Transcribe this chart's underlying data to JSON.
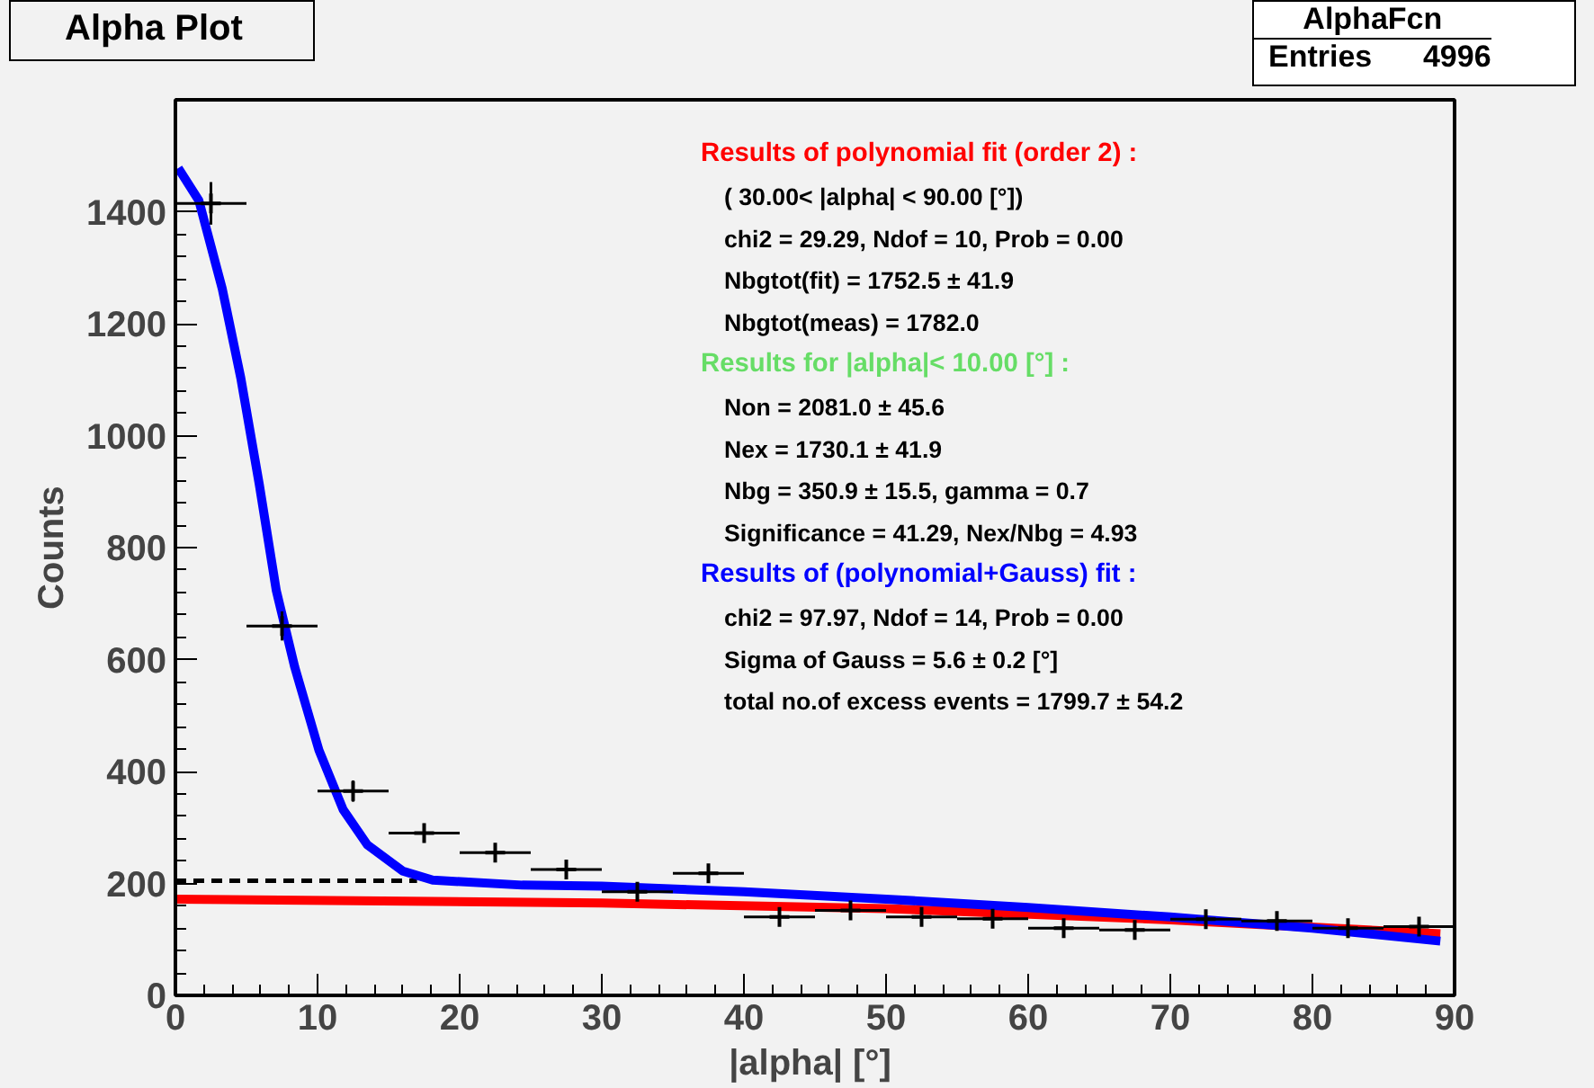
{
  "chart_data": {
    "type": "scatter",
    "title": "Alpha Plot",
    "xlabel": "|alpha|  [°]",
    "ylabel": "Counts",
    "xlim": [
      0,
      90
    ],
    "ylim": [
      0,
      1600
    ],
    "xticks": [
      0,
      10,
      20,
      30,
      40,
      50,
      60,
      70,
      80,
      90
    ],
    "yticks": [
      0,
      200,
      400,
      600,
      800,
      1000,
      1200,
      1400
    ],
    "grid": false,
    "x": [
      2.5,
      7.5,
      12.5,
      17.5,
      22.5,
      27.5,
      32.5,
      37.5,
      42.5,
      47.5,
      52.5,
      57.5,
      62.5,
      67.5,
      72.5,
      77.5,
      82.5,
      87.5
    ],
    "series": [
      {
        "color": "#000000",
        "marker": "cross",
        "values": [
          1415,
          660,
          365,
          290,
          255,
          225,
          185,
          218,
          140,
          152,
          140,
          137,
          120,
          117,
          136,
          133,
          120,
          123
        ],
        "errors": [
          38,
          26,
          19,
          17,
          16,
          15,
          14,
          15,
          12,
          12,
          12,
          12,
          11,
          11,
          12,
          12,
          11,
          11
        ],
        "xerrors": [
          2.5,
          2.5,
          2.5,
          2.5,
          2.5,
          2.5,
          2.5,
          2.5,
          2.5,
          2.5,
          2.5,
          2.5,
          2.5,
          2.5,
          2.5,
          2.5,
          2.5,
          2.5
        ]
      },
      {
        "type": "line",
        "color": "#ff0000",
        "line_style": "solid",
        "x": [
          0,
          30,
          50,
          70,
          89
        ],
        "values": [
          172,
          165,
          155,
          135,
          110
        ]
      },
      {
        "type": "line",
        "color": "#000000",
        "line_style": "dashed",
        "x": [
          0,
          17
        ],
        "values": [
          205,
          205
        ]
      },
      {
        "type": "line",
        "color": "#0000ff",
        "line_style": "solid",
        "x": [
          0.2,
          1.65,
          3.3,
          4.6,
          5.9,
          7.1,
          8.4,
          10.1,
          11.8,
          13.5,
          16,
          18.1,
          24.4,
          30,
          40,
          50,
          60,
          70,
          80,
          89
        ],
        "values": [
          1478,
          1420,
          1262,
          1103,
          913,
          723,
          586,
          438,
          332,
          269,
          222,
          206,
          197,
          195,
          185,
          172,
          157,
          140,
          120,
          97
        ]
      }
    ],
    "annotations": [
      "Results of polynomial fit (order  2) :",
      "( 30.00< |alpha| < 90.00 [°])",
      "chi2 =    29.29,  Ndof =   10,  Prob =   0.00",
      "Nbgtot(fit) =   1752.5 ±     41.9",
      "Nbgtot(meas) =   1782.0",
      "Results for |alpha|<  10.00 [°] :",
      "Non =   2081.0 ±     45.6",
      "Nex =   1730.1 ±     41.9",
      "Nbg =    350.9 ±     15.5,    gamma =    0.7",
      "Significance =  41.29,    Nex/Nbg =   4.93",
      "Results of (polynomial+Gauss) fit  :",
      "chi2 =    97.97,  Ndof =   14,  Prob =   0.00",
      "Sigma of Gauss =      5.6 ±      0.2  [°]",
      "total no.of excess events =   1799.7 ±     54.2",
      "AlphaFcn",
      "Entries      4996"
    ]
  }
}
